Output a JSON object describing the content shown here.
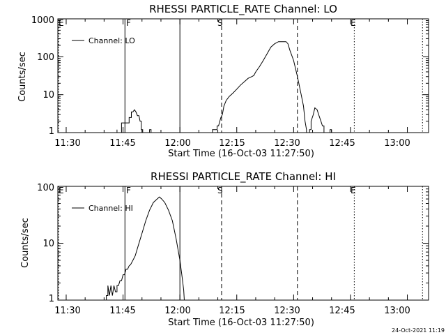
{
  "panels": [
    {
      "title": "RHESSI PARTICLE_RATE Channel: LO",
      "ylabel": "Counts/sec",
      "xlabel": "Start Time (16-Oct-03 11:27:50)",
      "legend": "Channel: LO",
      "ytick_labels": [
        "1",
        "10",
        "100",
        "1000"
      ]
    },
    {
      "title": "RHESSI PARTICLE_RATE Channel: HI",
      "ylabel": "Counts/sec",
      "xlabel": "Start Time (16-Oct-03 11:27:50)",
      "legend": "Channel: HI",
      "ytick_labels": [
        "1",
        "10",
        "100"
      ]
    }
  ],
  "xtick_labels": [
    "11:30",
    "11:45",
    "12:00",
    "12:15",
    "12:30",
    "12:45",
    "13:00"
  ],
  "markers": {
    "E_left": "E",
    "F": "F",
    "S": "S",
    "E_right": "E"
  },
  "footer_stamp": "24-Oct-2021 11:19",
  "chart_data": [
    {
      "type": "line",
      "title": "RHESSI PARTICLE_RATE Channel: LO",
      "xlabel": "Start Time (16-Oct-03 11:27:50)",
      "ylabel": "Counts/sec",
      "yscale": "log",
      "ylim": [
        1,
        1000
      ],
      "xlim_minutes_after_1130": [
        -2.2,
        95.6
      ],
      "x_ticks": [
        "11:30",
        "11:45",
        "12:00",
        "12:15",
        "12:30",
        "12:45",
        "13:00"
      ],
      "legend_position": "top-left",
      "vertical_markers": [
        {
          "label": "E",
          "time": "11:28",
          "style": "dotted"
        },
        {
          "label": "F",
          "time": "11:45.5",
          "style": "solid"
        },
        {
          "label": "",
          "time": "12:00",
          "style": "solid"
        },
        {
          "label": "S",
          "time": "12:11",
          "style": "dashed"
        },
        {
          "label": "",
          "time": "12:31",
          "style": "dashed"
        },
        {
          "label": "E",
          "time": "12:46",
          "style": "dotted"
        },
        {
          "label": "",
          "time": "13:04",
          "style": "dotted"
        }
      ],
      "series": [
        {
          "name": "Channel: LO",
          "points": [
            [
              13.4,
              0.8
            ],
            [
              13.4,
              1.2
            ],
            [
              13.4,
              0.8
            ],
            [
              14.6,
              0.8
            ],
            [
              14.6,
              1.2
            ],
            [
              14.6,
              1.8
            ],
            [
              16.6,
              1.8
            ],
            [
              16.6,
              2.5
            ],
            [
              17.2,
              2.5
            ],
            [
              17.2,
              3.5
            ],
            [
              17.6,
              3.5
            ],
            [
              18.0,
              4
            ],
            [
              18.4,
              3.5
            ],
            [
              18.8,
              2.8
            ],
            [
              19.2,
              2.8
            ],
            [
              19.5,
              2
            ],
            [
              19.8,
              2
            ],
            [
              19.8,
              1.2
            ],
            [
              20.2,
              1.2
            ],
            [
              20.2,
              0.8
            ],
            [
              22.0,
              0.8
            ],
            [
              22.0,
              1.2
            ],
            [
              22.4,
              1.2
            ],
            [
              22.4,
              0.8
            ],
            [
              38.6,
              0.8
            ],
            [
              38.6,
              1.2
            ],
            [
              39.8,
              1.2
            ],
            [
              39.8,
              1.5
            ],
            [
              40.2,
              1.5
            ],
            [
              40.8,
              2.5
            ],
            [
              41.2,
              3
            ],
            [
              41.6,
              5
            ],
            [
              42.2,
              7
            ],
            [
              43,
              9
            ],
            [
              44,
              11
            ],
            [
              45,
              14
            ],
            [
              46,
              18
            ],
            [
              47,
              22
            ],
            [
              48,
              27
            ],
            [
              49,
              30
            ],
            [
              49.5,
              32
            ],
            [
              50,
              40
            ],
            [
              51,
              55
            ],
            [
              52,
              80
            ],
            [
              53,
              120
            ],
            [
              54,
              180
            ],
            [
              55,
              220
            ],
            [
              56,
              250
            ],
            [
              58,
              250
            ],
            [
              58.5,
              220
            ],
            [
              59,
              150
            ],
            [
              60,
              80
            ],
            [
              61,
              30
            ],
            [
              62,
              10
            ],
            [
              62.6,
              5
            ],
            [
              63.0,
              2
            ],
            [
              63.4,
              1.2
            ],
            [
              63.4,
              0.8
            ],
            [
              64.2,
              0.8
            ],
            [
              64.2,
              1.2
            ],
            [
              64.6,
              1.2
            ],
            [
              64.6,
              2
            ],
            [
              65.2,
              3
            ],
            [
              65.6,
              4.5
            ],
            [
              66.2,
              4
            ],
            [
              66.6,
              3
            ],
            [
              67.2,
              2
            ],
            [
              67.6,
              1.5
            ],
            [
              68.0,
              1.5
            ],
            [
              68.0,
              0.8
            ],
            [
              69.6,
              0.8
            ],
            [
              69.6,
              1.2
            ],
            [
              70.0,
              1.2
            ],
            [
              70.0,
              0.8
            ]
          ]
        }
      ]
    },
    {
      "type": "line",
      "title": "RHESSI PARTICLE_RATE Channel: HI",
      "xlabel": "Start Time (16-Oct-03 11:27:50)",
      "ylabel": "Counts/sec",
      "yscale": "log",
      "ylim": [
        1,
        100
      ],
      "xlim_minutes_after_1130": [
        -2.2,
        95.6
      ],
      "x_ticks": [
        "11:30",
        "11:45",
        "12:00",
        "12:15",
        "12:30",
        "12:45",
        "13:00"
      ],
      "legend_position": "top-left",
      "vertical_markers": [
        {
          "label": "E",
          "time": "11:28",
          "style": "dotted"
        },
        {
          "label": "F",
          "time": "11:45.5",
          "style": "solid"
        },
        {
          "label": "",
          "time": "12:00",
          "style": "solid"
        },
        {
          "label": "S",
          "time": "12:11",
          "style": "dashed"
        },
        {
          "label": "",
          "time": "12:31",
          "style": "dashed"
        },
        {
          "label": "E",
          "time": "12:46",
          "style": "dotted"
        },
        {
          "label": "",
          "time": "13:04",
          "style": "dotted"
        }
      ],
      "series": [
        {
          "name": "Channel: HI",
          "points": [
            [
              10.6,
              0.9
            ],
            [
              10.6,
              1.2
            ],
            [
              11.0,
              1.2
            ],
            [
              11.0,
              1.8
            ],
            [
              11.4,
              1.2
            ],
            [
              11.8,
              1.8
            ],
            [
              12.2,
              1.2
            ],
            [
              12.6,
              1.8
            ],
            [
              13.0,
              1.4
            ],
            [
              13.4,
              1.4
            ],
            [
              13.4,
              1.8
            ],
            [
              13.8,
              1.8
            ],
            [
              14.2,
              2.2
            ],
            [
              14.6,
              2.2
            ],
            [
              15.0,
              2.8
            ],
            [
              15.4,
              2.8
            ],
            [
              15.8,
              3.5
            ],
            [
              16.2,
              3.5
            ],
            [
              16.6,
              4
            ],
            [
              17.0,
              4.2
            ],
            [
              17.6,
              5
            ],
            [
              18.2,
              6
            ],
            [
              19.0,
              9
            ],
            [
              20.0,
              15
            ],
            [
              21.0,
              25
            ],
            [
              22.0,
              38
            ],
            [
              23.0,
              52
            ],
            [
              24.0,
              60
            ],
            [
              24.6,
              65
            ],
            [
              25.2,
              60
            ],
            [
              26.0,
              52
            ],
            [
              27.0,
              38
            ],
            [
              28.0,
              25
            ],
            [
              29.0,
              12
            ],
            [
              30.0,
              5
            ],
            [
              30.6,
              2.5
            ],
            [
              31.0,
              1.5
            ],
            [
              31.2,
              0.9
            ]
          ]
        }
      ]
    }
  ]
}
